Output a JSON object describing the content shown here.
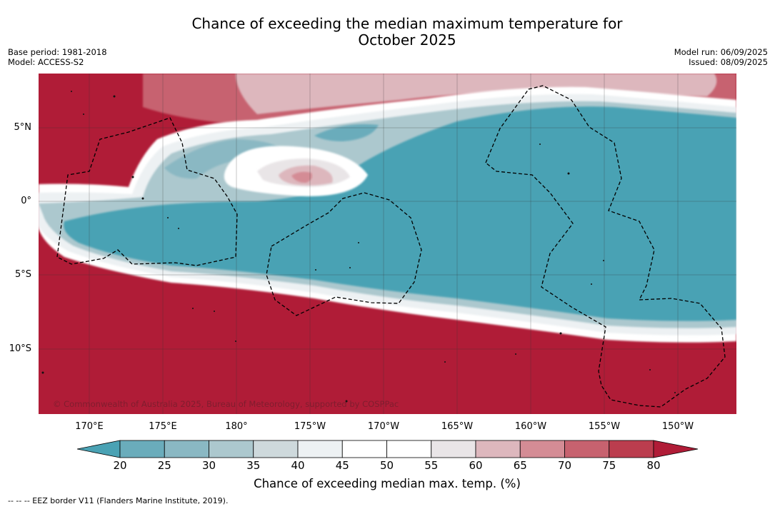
{
  "title_line1": "Chance of exceeding the median maximum temperature for",
  "title_line2": "October 2025",
  "meta_left": [
    "Base period: 1981-2018",
    "Model: ACCESS-S2"
  ],
  "meta_right": [
    "Model run: 06/09/2025",
    "Issued: 08/09/2025"
  ],
  "map": {
    "lon_ticks": [
      "170°E",
      "175°E",
      "180°",
      "175°W",
      "170°W",
      "165°W",
      "160°W",
      "155°W",
      "150°W"
    ],
    "lat_ticks": [
      "5°N",
      "0°",
      "5°S",
      "10°S"
    ],
    "copyright": "© Commonwealth of Australia 2025, Bureau of Meteorology, supported by COSPPac"
  },
  "colorbar": {
    "ticks": [
      "20",
      "25",
      "30",
      "35",
      "40",
      "45",
      "50",
      "55",
      "60",
      "65",
      "70",
      "75",
      "80"
    ],
    "label": "Chance of exceeding median max. temp. (%)",
    "colors": [
      "#4aa2b4",
      "#6aacbb",
      "#8ab8c3",
      "#acc8ce",
      "#ced9dc",
      "#edf1f3",
      "#ffffff",
      "#ffffff",
      "#e9e5e7",
      "#ddb7bd",
      "#d48c95",
      "#c7626f",
      "#bb3d4e",
      "#b01c37"
    ]
  },
  "legend_note": "--  --  -- EEZ border V11 (Flanders Marine Institute, 2019)."
}
